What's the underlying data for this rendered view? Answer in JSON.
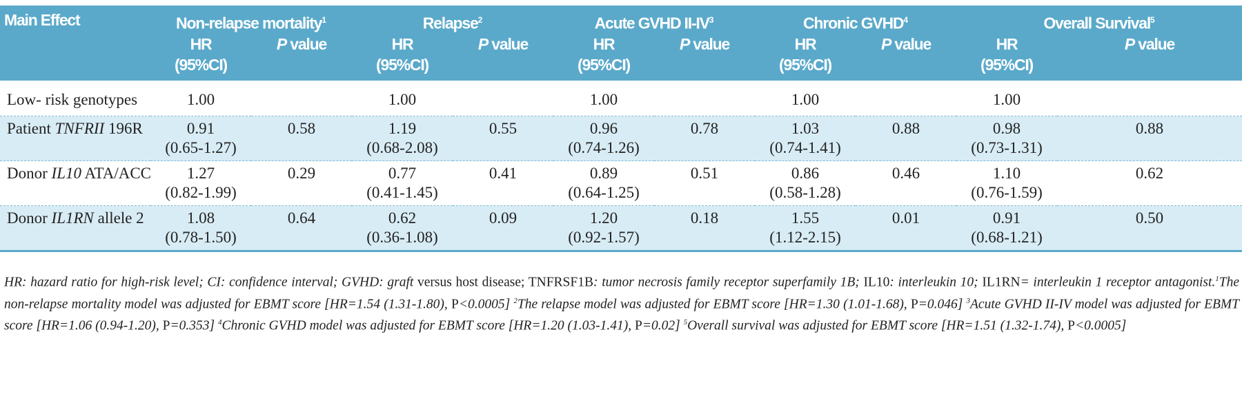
{
  "header": {
    "main_effect": "Main Effect",
    "groups": [
      {
        "title": "Non-relapse mortality",
        "note": "1"
      },
      {
        "title": "Relapse",
        "note": "2"
      },
      {
        "title": "Acute GVHD II-IV",
        "note": "3"
      },
      {
        "title": "Chronic GVHD",
        "note": "4"
      },
      {
        "title": "Overall Survival",
        "note": "5"
      }
    ],
    "hr_label": "HR (95%CI)",
    "p_italic": "P",
    "p_rest": " value"
  },
  "rows": [
    {
      "pre": "Low- risk genotypes",
      "gene": "",
      "post": "",
      "cells": [
        [
          "1.00",
          ""
        ],
        [
          "1.00",
          ""
        ],
        [
          "1.00",
          ""
        ],
        [
          "1.00",
          ""
        ],
        [
          "1.00",
          ""
        ]
      ],
      "ci": [
        "",
        "",
        "",
        "",
        ""
      ]
    },
    {
      "pre": "Patient ",
      "gene": "TNFRII",
      "post": " 196R",
      "cells": [
        [
          "0.91",
          "0.58"
        ],
        [
          "1.19",
          "0.55"
        ],
        [
          "0.96",
          "0.78"
        ],
        [
          "1.03",
          "0.88"
        ],
        [
          "0.98",
          "0.88"
        ]
      ],
      "ci": [
        "(0.65-1.27)",
        "(0.68-2.08)",
        "(0.74-1.26)",
        "(0.74-1.41)",
        "(0.73-1.31)"
      ]
    },
    {
      "pre": "Donor ",
      "gene": "IL10",
      "post": " ATA/ACC",
      "cells": [
        [
          "1.27",
          "0.29"
        ],
        [
          "0.77",
          "0.41"
        ],
        [
          "0.89",
          "0.51"
        ],
        [
          "0.86",
          "0.46"
        ],
        [
          "1.10",
          "0.62"
        ]
      ],
      "ci": [
        "(0.82-1.99)",
        "(0.41-1.45)",
        "(0.64-1.25)",
        "(0.58-1.28)",
        "(0.76-1.59)"
      ]
    },
    {
      "pre": "Donor ",
      "gene": "IL1RN",
      "post": " allele 2",
      "cells": [
        [
          "1.08",
          "0.64"
        ],
        [
          "0.62",
          "0.09"
        ],
        [
          "1.20",
          "0.18"
        ],
        [
          "1.55",
          "0.01"
        ],
        [
          "0.91",
          "0.50"
        ]
      ],
      "ci": [
        "(0.78-1.50)",
        "(0.36-1.08)",
        "(0.92-1.57)",
        "(1.12-2.15)",
        "(0.68-1.21)"
      ]
    }
  ],
  "footnote": [
    {
      "t": "HR: hazard ratio for high-risk level; CI: confidence interval; GVHD: graft ",
      "up": false
    },
    {
      "t": "versus host disease; TNFRSF1B",
      "up": true
    },
    {
      "t": ": tumor necrosis family receptor superfamily 1B; ",
      "up": false
    },
    {
      "t": "IL10",
      "up": true
    },
    {
      "t": ": interleukin 10; ",
      "up": false
    },
    {
      "t": "IL1RN",
      "up": true
    },
    {
      "t": "= interleukin 1 receptor antagonist.",
      "up": false
    },
    {
      "t": "1",
      "sup": true
    },
    {
      "t": "The non-relapse mortality model was adjusted for EBMT score [HR=1.54 (1.31-1.80), ",
      "up": false
    },
    {
      "t": "P",
      "up": true
    },
    {
      "t": "<0.0005] ",
      "up": false
    },
    {
      "t": "2",
      "sup": true
    },
    {
      "t": "The relapse model was adjusted for EBMT score [HR=1.30 (1.01-1.68), ",
      "up": false
    },
    {
      "t": "P",
      "up": true
    },
    {
      "t": "=0.046] ",
      "up": false
    },
    {
      "t": "3",
      "sup": true
    },
    {
      "t": "Acute GVHD II-IV model was adjusted for EBMT score [HR=1.06 (0.94-1.20), ",
      "up": false
    },
    {
      "t": "P",
      "up": true
    },
    {
      "t": "=0.353] ",
      "up": false
    },
    {
      "t": "4",
      "sup": true
    },
    {
      "t": "Chronic GVHD model was adjusted for EBMT score [HR=1.20 (1.03-1.41), ",
      "up": false
    },
    {
      "t": "P",
      "up": true
    },
    {
      "t": "=0.02] ",
      "up": false
    },
    {
      "t": "5",
      "sup": true
    },
    {
      "t": "Overall survival was adjusted for EBMT score [HR=1.51 (1.32-1.74), ",
      "up": false
    },
    {
      "t": "P",
      "up": true
    },
    {
      "t": "<0.0005]",
      "up": false
    }
  ],
  "colors": {
    "header_bg": "#5aa9ca",
    "alt_row_bg": "#d8ecf5"
  }
}
